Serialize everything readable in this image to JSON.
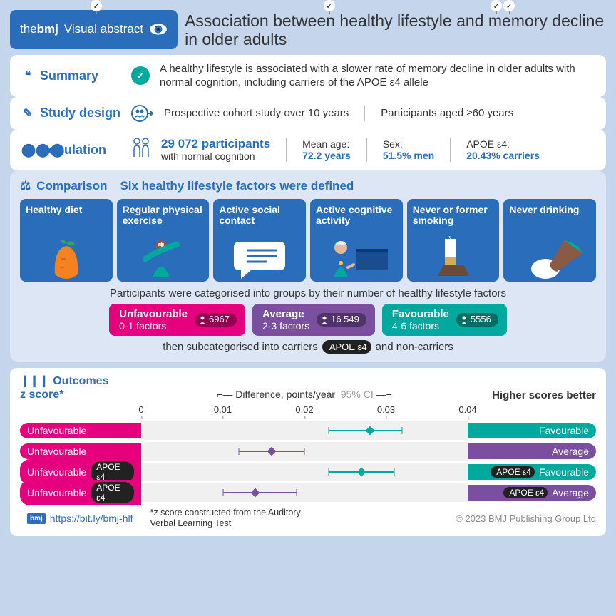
{
  "header": {
    "brand_the": "the",
    "brand_bmj": "bmj",
    "badge_label": "Visual abstract",
    "title": "Association between healthy lifestyle and memory decline in older adults"
  },
  "summary": {
    "label": "Summary",
    "text": "A healthy lifestyle is associated with a slower rate of memory decline in older adults with normal cognition, including carriers of the APOE ε4 allele"
  },
  "design": {
    "label": "Study design",
    "text1": "Prospective cohort study over 10 years",
    "text2": "Participants aged ≥60 years"
  },
  "population": {
    "label": "Population",
    "participants_n": "29 072 participants",
    "participants_sub": "with normal cognition",
    "meanage_label": "Mean age:",
    "meanage_val": "72.2 years",
    "sex_label": "Sex:",
    "sex_val": "51.5% men",
    "apoe_label": "APOE ε4:",
    "apoe_val": "20.43% carriers"
  },
  "comparison": {
    "label": "Comparison",
    "subtitle": "Six healthy lifestyle factors were defined",
    "factors": [
      "Healthy diet",
      "Regular physical exercise",
      "Active social contact",
      "Active cognitive activity",
      "Never or former smoking",
      "Never drinking"
    ],
    "cat_text": "Participants were categorised into groups by their number of healthy lifestyle factors",
    "groups": [
      {
        "name": "Unfavourable",
        "range": "0-1 factors",
        "n": "6967",
        "color": "#e6007e"
      },
      {
        "name": "Average",
        "range": "2-3 factors",
        "n": "16 549",
        "color": "#7b4fa0"
      },
      {
        "name": "Favourable",
        "range": "4-6 factors",
        "n": "5556",
        "color": "#00a99d"
      }
    ],
    "subcat_pre": "then subcategorised into carriers",
    "apoe_label": "APOE ε4",
    "subcat_post": "and non-carriers"
  },
  "outcomes": {
    "label": "Outcomes",
    "sub": "z score*",
    "axis_title": "Difference, points/year",
    "ci_label": "95% CI",
    "ticks": [
      "0",
      "0.01",
      "0.02",
      "0.03",
      "0.04"
    ],
    "better": "Higher scores better",
    "rows": [
      {
        "left": "Unfavourable",
        "apoe_left": false,
        "right": "Favourable",
        "apoe_right": false,
        "right_color": "#00a99d",
        "lo": 0.023,
        "pt": 0.028,
        "hi": 0.032,
        "line_color": "#00a99d"
      },
      {
        "left": "Unfavourable",
        "apoe_left": false,
        "right": "Average",
        "apoe_right": false,
        "right_color": "#7b4fa0",
        "lo": 0.012,
        "pt": 0.016,
        "hi": 0.02,
        "line_color": "#7b4fa0"
      },
      {
        "left": "Unfavourable",
        "apoe_left": true,
        "right": "Favourable",
        "apoe_right": true,
        "right_color": "#00a99d",
        "lo": 0.023,
        "pt": 0.027,
        "hi": 0.031,
        "line_color": "#00a99d"
      },
      {
        "left": "Unfavourable",
        "apoe_left": true,
        "right": "Average",
        "apoe_right": true,
        "right_color": "#7b4fa0",
        "lo": 0.01,
        "pt": 0.014,
        "hi": 0.019,
        "line_color": "#7b4fa0"
      }
    ],
    "left_color": "#e6007e",
    "xmax": 0.04
  },
  "footer": {
    "link": "https://bit.ly/bmj-hlf",
    "note": "*z score constructed from the Auditory Verbal Learning Test",
    "copyright": "© 2023 BMJ Publishing Group Ltd"
  },
  "colors": {
    "primary": "#2a6ebb",
    "teal": "#00a99d",
    "carrot": "#f58220"
  }
}
